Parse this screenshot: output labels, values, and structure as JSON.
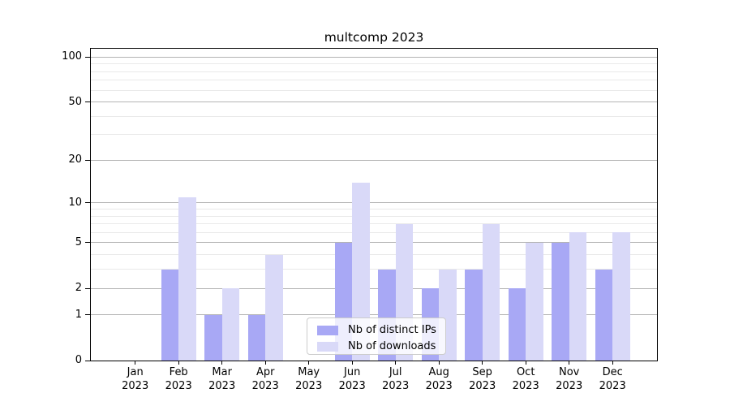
{
  "chart_data": {
    "type": "bar",
    "title": "multcomp 2023",
    "categories": [
      {
        "month": "Jan",
        "year": "2023"
      },
      {
        "month": "Feb",
        "year": "2023"
      },
      {
        "month": "Mar",
        "year": "2023"
      },
      {
        "month": "Apr",
        "year": "2023"
      },
      {
        "month": "May",
        "year": "2023"
      },
      {
        "month": "Jun",
        "year": "2023"
      },
      {
        "month": "Jul",
        "year": "2023"
      },
      {
        "month": "Aug",
        "year": "2023"
      },
      {
        "month": "Sep",
        "year": "2023"
      },
      {
        "month": "Oct",
        "year": "2023"
      },
      {
        "month": "Nov",
        "year": "2023"
      },
      {
        "month": "Dec",
        "year": "2023"
      }
    ],
    "series": [
      {
        "name": "Nb of distinct IPs",
        "color": "#a8a8f5",
        "values": [
          0,
          3,
          1,
          1,
          0,
          5,
          3,
          2,
          3,
          2,
          5,
          3
        ]
      },
      {
        "name": "Nb of downloads",
        "color": "#d9d9f8",
        "values": [
          0,
          11,
          2,
          4,
          0,
          14,
          7,
          3,
          7,
          5,
          6,
          6
        ]
      }
    ],
    "xlabel": "",
    "ylabel": "",
    "yscale": "log1p",
    "ylim": [
      0,
      113
    ],
    "y_major_ticks": [
      100,
      50,
      20,
      10,
      5,
      2,
      1,
      0
    ],
    "y_minor_ticks": [
      3,
      4,
      6,
      7,
      8,
      9,
      30,
      40,
      60,
      70,
      80,
      90
    ],
    "grid": "major+minor horizontal",
    "legend_position": "lower center-right inside plot",
    "colors": {
      "major_grid": "#b4b4b4",
      "minor_grid": "#e9e9e9",
      "spine": "#000000",
      "legend_border": "#cccccc"
    }
  }
}
